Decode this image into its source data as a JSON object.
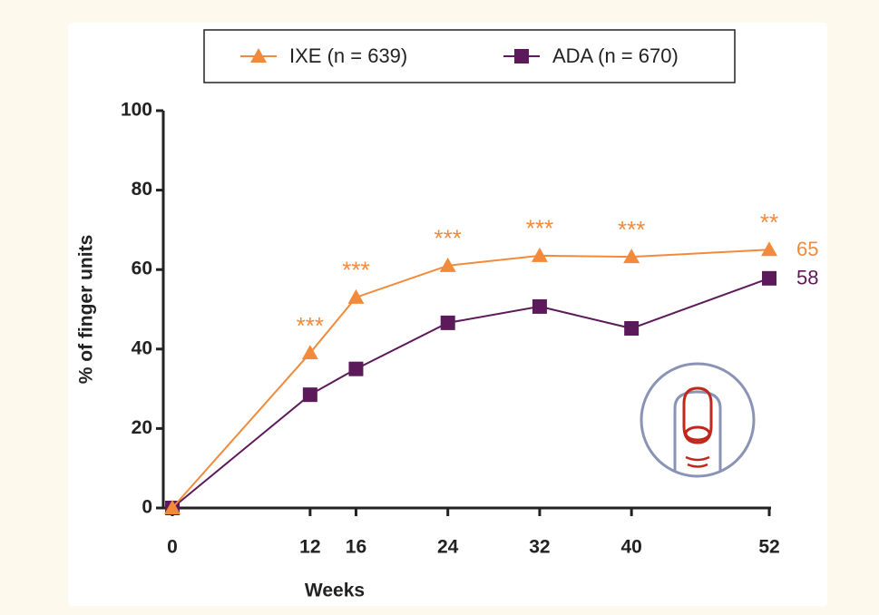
{
  "chart_data": {
    "type": "line",
    "x": [
      0,
      12,
      16,
      24,
      32,
      40,
      52
    ],
    "xlim": [
      0,
      52
    ],
    "xticks": [
      0,
      12,
      16,
      24,
      32,
      40,
      52
    ],
    "ylim": [
      0,
      100
    ],
    "yticks": [
      0,
      20,
      40,
      60,
      80,
      100
    ],
    "xlabel": "Weeks",
    "ylabel": "% of finger units",
    "series": [
      {
        "name": "IXE (n = 639)",
        "color": "#f28a3c",
        "marker": "triangle",
        "values": [
          0,
          39,
          53,
          61,
          63.5,
          63.2,
          65
        ],
        "end_label": "65"
      },
      {
        "name": "ADA (n = 670)",
        "color": "#5c1a5a",
        "marker": "square",
        "values": [
          0,
          28.5,
          35,
          46.6,
          50.7,
          45.2,
          57.8
        ],
        "end_label": "58"
      }
    ],
    "annotations": [
      {
        "x": 12,
        "text": "***"
      },
      {
        "x": 16,
        "text": "***"
      },
      {
        "x": 24,
        "text": "***"
      },
      {
        "x": 32,
        "text": "***"
      },
      {
        "x": 40,
        "text": "***"
      },
      {
        "x": 52,
        "text": "**"
      }
    ]
  }
}
